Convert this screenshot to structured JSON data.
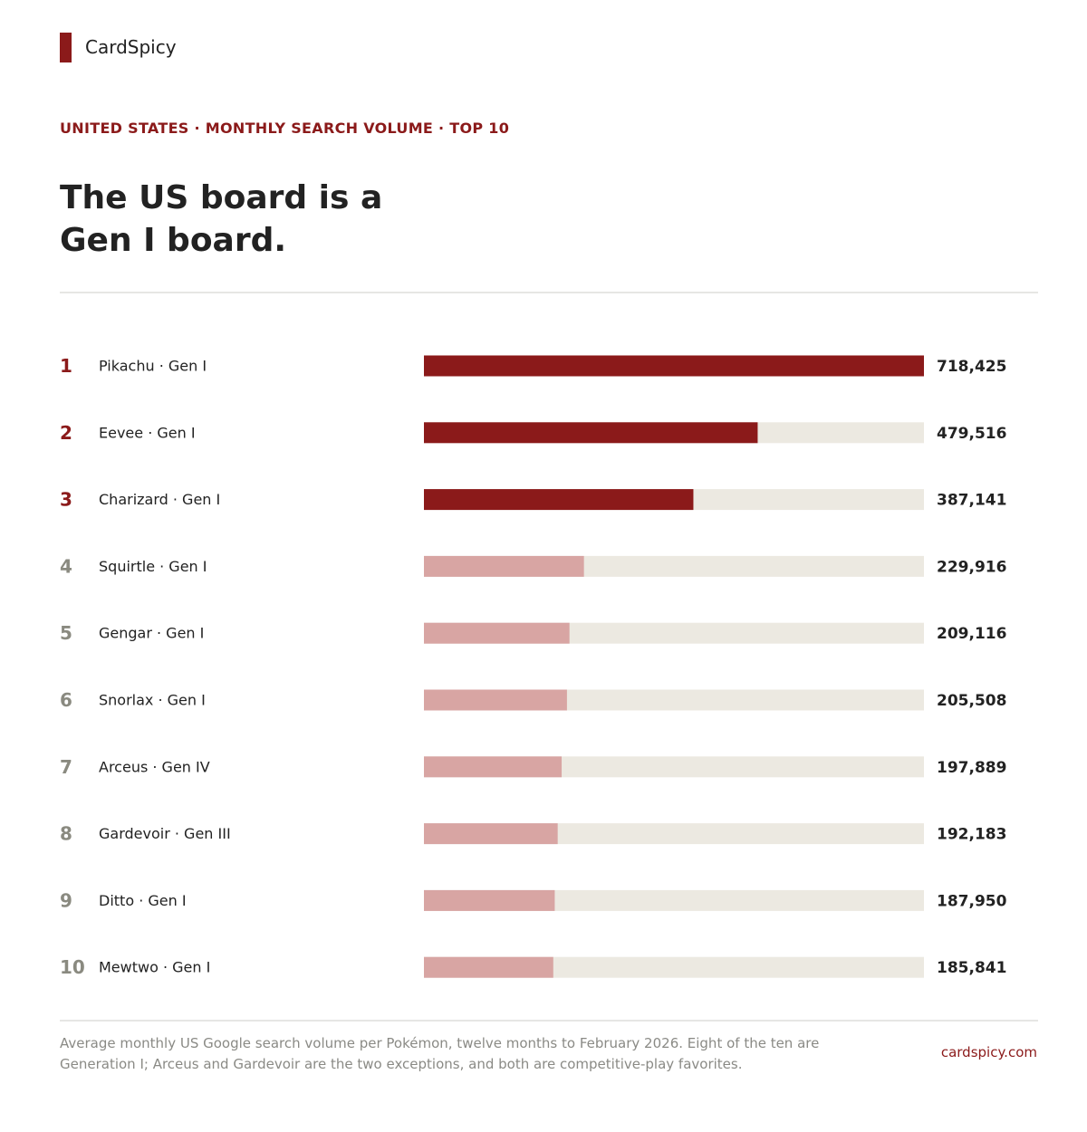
{
  "brand": {
    "name": "CardSpicy"
  },
  "header": {
    "eyebrow": "UNITED STATES · MONTHLY SEARCH VOLUME · TOP 10",
    "title": "The US board is a Gen I board."
  },
  "footer": {
    "note": "Average monthly US Google search volume per Pokémon, twelve months to February 2026. Eight of the ten are Generation I; Arceus and Gardevoir are the two exceptions, and both are competitive-play favorites.",
    "site": "cardspicy.com"
  },
  "colors": {
    "accent": "#8b1a1a",
    "bar_top": "#8b1a1a",
    "bar_rest": "#d8a5a3",
    "track": "#ece9e1",
    "rank_top": "#8b1a1a",
    "rank_rest": "#8a8a80",
    "text": "#222222",
    "muted": "#8a8a85"
  },
  "chart_data": {
    "type": "bar",
    "orientation": "horizontal",
    "highlight_top_n": 3,
    "xlim": [
      0,
      718425
    ],
    "ranks": [
      "1",
      "2",
      "3",
      "4",
      "5",
      "6",
      "7",
      "8",
      "9",
      "10"
    ],
    "categories": [
      "Pikachu · Gen I",
      "Eevee · Gen I",
      "Charizard · Gen I",
      "Squirtle · Gen I",
      "Gengar · Gen I",
      "Snorlax · Gen I",
      "Arceus · Gen IV",
      "Gardevoir · Gen III",
      "Ditto · Gen I",
      "Mewtwo · Gen I"
    ],
    "values": [
      718425,
      479516,
      387141,
      229916,
      209116,
      205508,
      197889,
      192183,
      187950,
      185841
    ],
    "value_labels": [
      "718,425",
      "479,516",
      "387,141",
      "229,916",
      "209,116",
      "205,508",
      "197,889",
      "192,183",
      "187,950",
      "185,841"
    ]
  }
}
